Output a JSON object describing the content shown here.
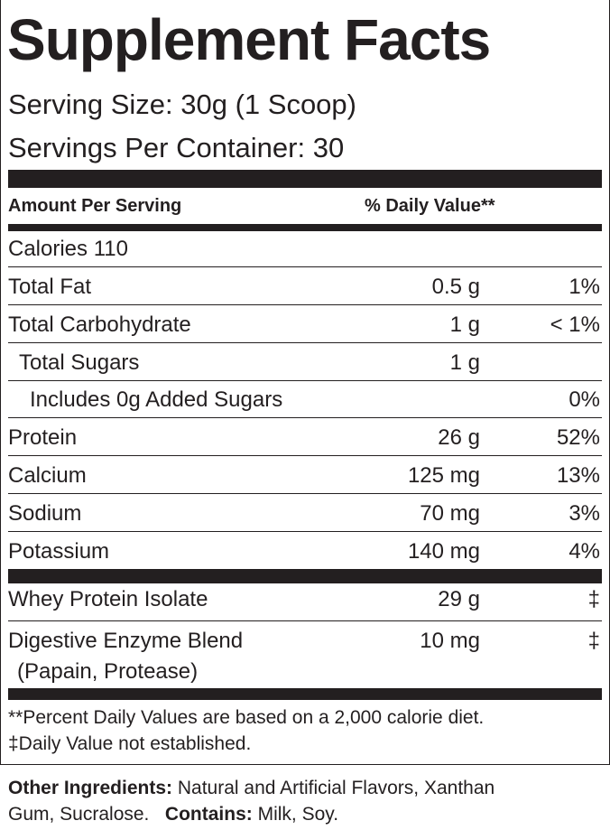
{
  "title": "Supplement Facts",
  "serving_size": "Serving Size: 30g (1 Scoop)",
  "servings_per_container": "Servings Per Container: 30",
  "header": {
    "amount": "Amount Per Serving",
    "dv": "% Daily Value**"
  },
  "calories": "Calories  110",
  "nutrients": [
    {
      "name": "Total Fat",
      "amount": "0.5 g",
      "dv": "1%"
    },
    {
      "name": "Total Carbohydrate",
      "amount": "1 g",
      "dv": "< 1%"
    },
    {
      "name": "Total Sugars",
      "amount": "1 g",
      "dv": ""
    },
    {
      "name": "Includes 0g Added Sugars",
      "amount": "",
      "dv": "0%"
    },
    {
      "name": "Protein",
      "amount": "26 g",
      "dv": "52%"
    },
    {
      "name": "Calcium",
      "amount": "125 mg",
      "dv": "13%"
    },
    {
      "name": "Sodium",
      "amount": "70 mg",
      "dv": "3%"
    },
    {
      "name": "Potassium",
      "amount": "140 mg",
      "dv": "4%"
    }
  ],
  "blends": [
    {
      "name": "Whey Protein Isolate",
      "amount": "29 g",
      "dv": "‡"
    },
    {
      "name": "Digestive Enzyme Blend",
      "sub": "(Papain, Protease)",
      "amount": "10 mg",
      "dv": "‡"
    }
  ],
  "footnotes": [
    "**Percent Daily Values are based on a 2,000 calorie diet.",
    "‡Daily Value not established."
  ],
  "other": {
    "label": "Other Ingredients:",
    "text1": " Natural and Artificial Flavors, Xanthan",
    "text2": "Gum, Sucralose.",
    "contains_label": "Contains:",
    "contains": " Milk, Soy."
  }
}
